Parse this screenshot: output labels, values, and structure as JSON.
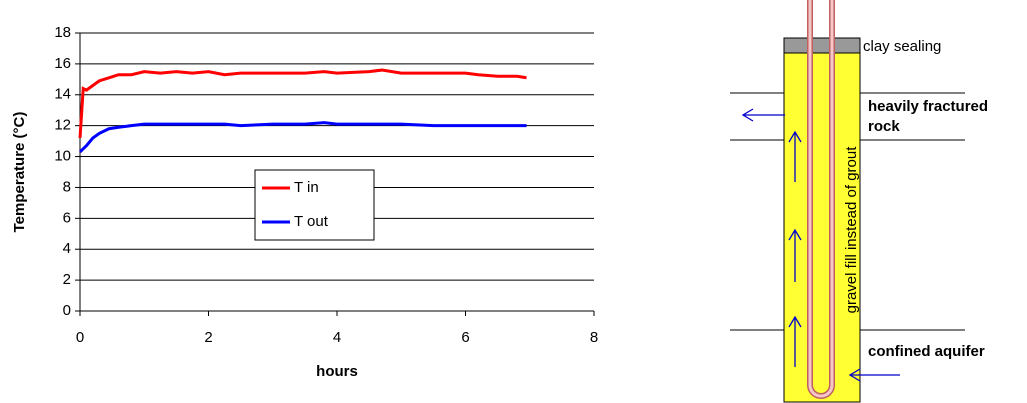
{
  "chart_data": {
    "type": "line",
    "x": [
      0,
      0.05,
      0.1,
      0.2,
      0.3,
      0.45,
      0.6,
      0.8,
      1.0,
      1.25,
      1.5,
      1.75,
      2.0,
      2.25,
      2.5,
      3.0,
      3.5,
      3.8,
      4.0,
      4.5,
      4.7,
      5.0,
      5.5,
      6.0,
      6.2,
      6.5,
      6.8,
      6.95
    ],
    "series": [
      {
        "name": "T in",
        "color": "#ff0000",
        "values": [
          11.2,
          14.4,
          14.3,
          14.6,
          14.9,
          15.1,
          15.3,
          15.3,
          15.5,
          15.4,
          15.5,
          15.4,
          15.5,
          15.3,
          15.4,
          15.4,
          15.4,
          15.5,
          15.4,
          15.5,
          15.6,
          15.4,
          15.4,
          15.4,
          15.3,
          15.2,
          15.2,
          15.1
        ]
      },
      {
        "name": "T out",
        "color": "#0000ff",
        "values": [
          10.3,
          10.5,
          10.7,
          11.2,
          11.5,
          11.8,
          11.9,
          12.0,
          12.1,
          12.1,
          12.1,
          12.1,
          12.1,
          12.1,
          12.0,
          12.1,
          12.1,
          12.2,
          12.1,
          12.1,
          12.1,
          12.1,
          12.0,
          12.0,
          12.0,
          12.0,
          12.0,
          12.0
        ]
      }
    ],
    "xlabel": "hours",
    "ylabel": "Temperature (°C)",
    "xlim": [
      0,
      8
    ],
    "xticks": [
      0,
      2,
      4,
      6,
      8
    ],
    "ylim": [
      0,
      18
    ],
    "yticks": [
      0,
      2,
      4,
      6,
      8,
      10,
      12,
      14,
      16,
      18
    ],
    "grid": true
  },
  "diagram": {
    "clay": "clay sealing",
    "fractured": [
      "heavily fractured",
      "rock"
    ],
    "fill": "gravel fill instead of grout",
    "aquifer": "confined aquifer"
  }
}
